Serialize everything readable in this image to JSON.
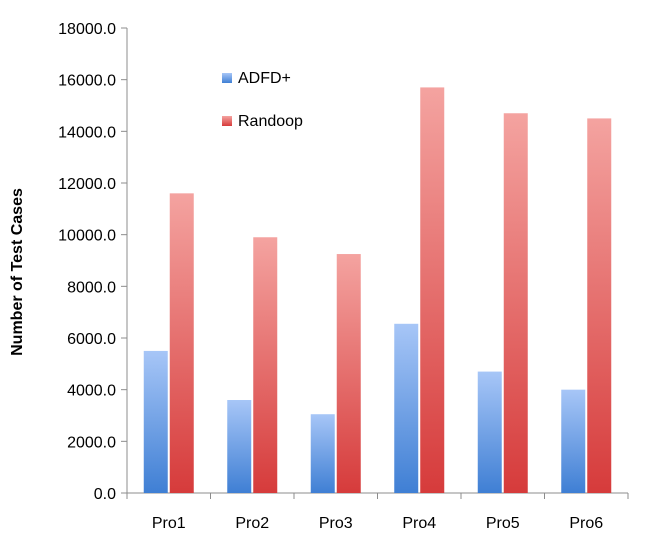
{
  "chart_data": {
    "type": "bar",
    "categories": [
      "Pro1",
      "Pro2",
      "Pro3",
      "Pro4",
      "Pro5",
      "Pro6"
    ],
    "series": [
      {
        "name": "ADFD+",
        "values": [
          5500,
          3600,
          3050,
          6550,
          4700,
          4000
        ],
        "color": "#5b8fd6"
      },
      {
        "name": "Randoop",
        "values": [
          11600,
          9900,
          9250,
          15700,
          14700,
          14500
        ],
        "color": "#e0474a"
      }
    ],
    "ylabel": "Number of Test Cases",
    "xlabel": "",
    "ylim": [
      0,
      18000
    ],
    "yticks": [
      "0.0",
      "2000.0",
      "4000.0",
      "6000.0",
      "8000.0",
      "10000.0",
      "12000.0",
      "14000.0",
      "16000.0",
      "18000.0"
    ],
    "legend_position": "top-left",
    "grid": false
  }
}
